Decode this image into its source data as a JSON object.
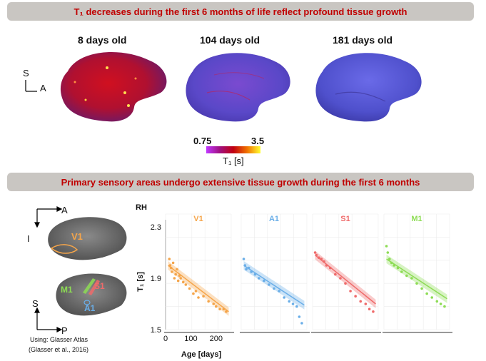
{
  "top": {
    "title": "T₁ decreases during the first 6 months of life reflect profound tissue growth",
    "ages": [
      "8 days old",
      "104 days old",
      "181 days old"
    ],
    "orientation": {
      "up": "S",
      "right": "A"
    },
    "colorbar": {
      "min": "0.75",
      "max": "3.5",
      "label": "T₁ [s]"
    }
  },
  "bottom": {
    "title": "Primary sensory areas undergo extensive tissue growth during the first 6 months",
    "orient_top": {
      "right": "A",
      "down": "I"
    },
    "orient_bottom": {
      "up": "S",
      "right": "P"
    },
    "regions": [
      "V1",
      "M1",
      "S1",
      "A1"
    ],
    "atlas_line1": "Using: Glasser Atlas",
    "atlas_line2": "(Glasser et al., 2016)",
    "hemisphere": "RH"
  },
  "chart_data": {
    "type": "scatter",
    "ylabel": "T₁ [s]",
    "xlabel": "Age [days]",
    "ylim": [
      1.5,
      2.3
    ],
    "yticks": [
      "2.3",
      "1.9",
      "1.5"
    ],
    "xticks": [
      "0",
      "100",
      "200"
    ],
    "xlim": [
      0,
      260
    ],
    "panels": [
      {
        "name": "V1",
        "color": "#f5a54a",
        "points": [
          [
            15,
            2.05
          ],
          [
            18,
            2.0
          ],
          [
            22,
            1.98
          ],
          [
            25,
            1.95
          ],
          [
            30,
            2.02
          ],
          [
            35,
            1.9
          ],
          [
            40,
            1.93
          ],
          [
            45,
            1.97
          ],
          [
            50,
            1.88
          ],
          [
            55,
            1.92
          ],
          [
            60,
            1.9
          ],
          [
            70,
            1.87
          ],
          [
            80,
            1.85
          ],
          [
            95,
            1.82
          ],
          [
            110,
            1.78
          ],
          [
            120,
            1.8
          ],
          [
            130,
            1.75
          ],
          [
            150,
            1.76
          ],
          [
            170,
            1.72
          ],
          [
            190,
            1.7
          ],
          [
            200,
            1.68
          ],
          [
            215,
            1.66
          ],
          [
            230,
            1.66
          ],
          [
            240,
            1.64
          ]
        ],
        "fit": [
          [
            10,
            2.0
          ],
          [
            250,
            1.64
          ]
        ]
      },
      {
        "name": "A1",
        "color": "#6aaee8",
        "points": [
          [
            10,
            2.05
          ],
          [
            15,
            2.0
          ],
          [
            20,
            1.97
          ],
          [
            30,
            1.98
          ],
          [
            40,
            1.95
          ],
          [
            55,
            1.93
          ],
          [
            70,
            1.9
          ],
          [
            90,
            1.88
          ],
          [
            110,
            1.85
          ],
          [
            130,
            1.82
          ],
          [
            150,
            1.8
          ],
          [
            170,
            1.75
          ],
          [
            190,
            1.72
          ],
          [
            205,
            1.7
          ],
          [
            220,
            1.68
          ],
          [
            230,
            1.6
          ],
          [
            240,
            1.55
          ]
        ],
        "fit": [
          [
            10,
            2.0
          ],
          [
            250,
            1.69
          ]
        ]
      },
      {
        "name": "S1",
        "color": "#ef6a6a",
        "points": [
          [
            10,
            2.1
          ],
          [
            15,
            2.08
          ],
          [
            25,
            2.06
          ],
          [
            35,
            2.05
          ],
          [
            45,
            2.03
          ],
          [
            55,
            2.0
          ],
          [
            70,
            1.98
          ],
          [
            90,
            1.93
          ],
          [
            110,
            1.9
          ],
          [
            130,
            1.86
          ],
          [
            150,
            1.8
          ],
          [
            170,
            1.76
          ],
          [
            190,
            1.72
          ],
          [
            210,
            1.7
          ],
          [
            225,
            1.66
          ],
          [
            240,
            1.64
          ]
        ],
        "fit": [
          [
            10,
            2.08
          ],
          [
            250,
            1.7
          ]
        ]
      },
      {
        "name": "M1",
        "color": "#8ddc54",
        "points": [
          [
            10,
            2.15
          ],
          [
            15,
            2.1
          ],
          [
            22,
            2.05
          ],
          [
            30,
            2.02
          ],
          [
            40,
            2.0
          ],
          [
            55,
            1.98
          ],
          [
            70,
            1.95
          ],
          [
            90,
            1.92
          ],
          [
            110,
            1.9
          ],
          [
            130,
            1.86
          ],
          [
            150,
            1.82
          ],
          [
            170,
            1.78
          ],
          [
            190,
            1.75
          ],
          [
            210,
            1.72
          ],
          [
            225,
            1.7
          ],
          [
            240,
            1.68
          ]
        ],
        "fit": [
          [
            10,
            2.05
          ],
          [
            250,
            1.74
          ]
        ]
      }
    ]
  }
}
